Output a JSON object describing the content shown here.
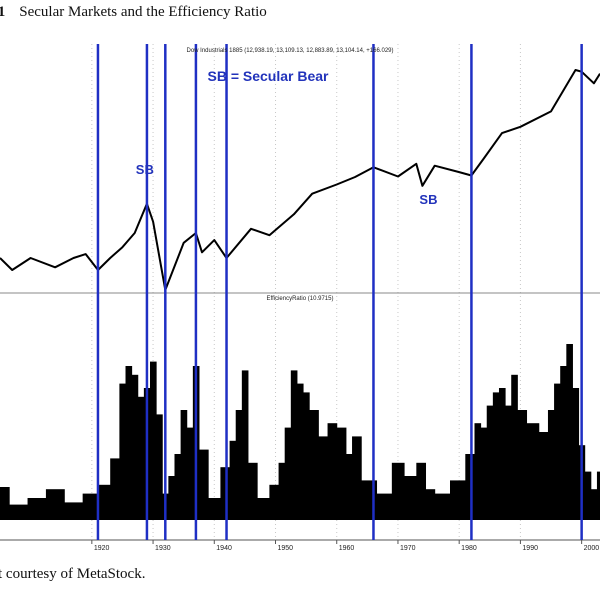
{
  "figure": {
    "number": ".1",
    "title": "Secular Markets and the Efficiency Ratio",
    "caption": "t courtesy of MetaStock."
  },
  "chart_data": [
    {
      "type": "line",
      "title": "Dow Industrials 1885 (12,938.19, 13,109.13, 12,883.89, 13,104.14, +166.029)",
      "legend_text": "SB = Secular Bear",
      "annotations": [
        {
          "text": "SB",
          "year": 1928
        },
        {
          "text": "SB",
          "year": 1974
        }
      ],
      "y_scale": "log",
      "x": [
        1905,
        1907,
        1910,
        1914,
        1917,
        1919,
        1921,
        1923,
        1925,
        1927,
        1929,
        1930,
        1932,
        1935,
        1937,
        1938,
        1940,
        1942,
        1946,
        1949,
        1953,
        1956,
        1960,
        1963,
        1966,
        1970,
        1973,
        1974,
        1976,
        1980,
        1982,
        1984,
        1987,
        1990,
        1995,
        1999,
        2000,
        2002,
        2003
      ],
      "y": [
        95,
        70,
        95,
        75,
        95,
        105,
        70,
        95,
        125,
        180,
        380,
        240,
        42,
        140,
        180,
        110,
        150,
        95,
        200,
        170,
        290,
        490,
        620,
        750,
        960,
        760,
        1050,
        600,
        1000,
        850,
        780,
        1200,
        2300,
        2700,
        4000,
        11500,
        11000,
        8200,
        10500
      ]
    },
    {
      "type": "bar",
      "title": "EfficiencyRatio (10.9715)",
      "x": [
        1905,
        1908,
        1911,
        1914,
        1917,
        1920,
        1922,
        1924,
        1925,
        1926,
        1927,
        1928,
        1929,
        1930,
        1931,
        1932,
        1933,
        1934,
        1935,
        1936,
        1937,
        1938,
        1940,
        1942,
        1943,
        1944,
        1945,
        1946,
        1948,
        1950,
        1951,
        1952,
        1953,
        1954,
        1955,
        1956,
        1958,
        1959,
        1961,
        1962,
        1963,
        1965,
        1968,
        1970,
        1972,
        1974,
        1975,
        1977,
        1980,
        1982,
        1983,
        1984,
        1985,
        1986,
        1987,
        1988,
        1989,
        1990,
        1992,
        1994,
        1995,
        1996,
        1997,
        1998,
        1999,
        2000,
        2001,
        2002,
        2003
      ],
      "values": [
        15,
        7,
        10,
        14,
        8,
        12,
        16,
        28,
        62,
        70,
        66,
        56,
        60,
        72,
        48,
        12,
        20,
        30,
        50,
        42,
        70,
        32,
        10,
        24,
        36,
        50,
        68,
        26,
        10,
        16,
        26,
        42,
        68,
        62,
        58,
        50,
        38,
        44,
        42,
        30,
        38,
        18,
        12,
        26,
        20,
        26,
        14,
        12,
        18,
        30,
        44,
        42,
        52,
        58,
        60,
        52,
        66,
        50,
        44,
        40,
        50,
        62,
        70,
        80,
        60,
        34,
        22,
        14,
        22
      ],
      "ylim": [
        0,
        100
      ]
    }
  ],
  "x_axis": {
    "xlim": [
      1905,
      2003
    ],
    "tick_labels": [
      "1920",
      "1930",
      "1940",
      "1950",
      "1960",
      "1970",
      "1980",
      "1990",
      "2000"
    ]
  },
  "vertical_markers": [
    1921,
    1929,
    1932,
    1937,
    1942,
    1966,
    1982,
    2000
  ],
  "colors": {
    "marker_line": "#1f2fc4",
    "annotation": "#2233bb",
    "series": "#000000",
    "grid": "#c8c8c8"
  }
}
